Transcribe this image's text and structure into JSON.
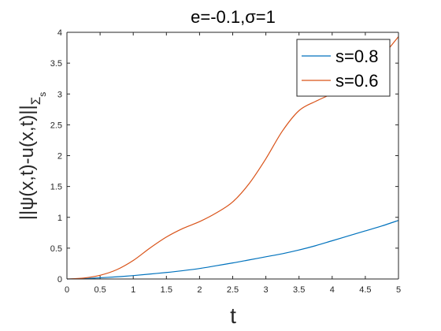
{
  "chart_data": {
    "type": "line",
    "title": "e=-0.1,σ=1",
    "xlabel": "t",
    "ylabel": "||ψ(x,t)-u(x,t)||",
    "ylabel_subscript": "Σ",
    "ylabel_subsubscript": "s",
    "xlim": [
      0,
      5
    ],
    "ylim": [
      0,
      4
    ],
    "xticks": [
      "0",
      "0.5",
      "1",
      "1.5",
      "2",
      "2.5",
      "3",
      "3.5",
      "4",
      "4.5",
      "5"
    ],
    "yticks": [
      "0",
      "0.5",
      "1",
      "1.5",
      "2",
      "2.5",
      "3",
      "3.5",
      "4"
    ],
    "grid": false,
    "legend_position": "top-right",
    "series": [
      {
        "name": "s=0.8",
        "color": "#0072BD",
        "x": [
          0,
          0.25,
          0.5,
          0.75,
          1,
          1.25,
          1.5,
          1.75,
          2,
          2.25,
          2.5,
          2.75,
          3,
          3.25,
          3.5,
          3.75,
          4,
          4.25,
          4.5,
          4.75,
          5
        ],
        "y": [
          0,
          0.005,
          0.02,
          0.035,
          0.055,
          0.08,
          0.105,
          0.135,
          0.17,
          0.215,
          0.26,
          0.31,
          0.36,
          0.41,
          0.47,
          0.54,
          0.62,
          0.7,
          0.78,
          0.86,
          0.95
        ]
      },
      {
        "name": "s=0.6",
        "color": "#D95319",
        "x": [
          0,
          0.25,
          0.5,
          0.75,
          1,
          1.25,
          1.5,
          1.75,
          2,
          2.25,
          2.5,
          2.75,
          3,
          3.25,
          3.5,
          3.75,
          4,
          4.25,
          4.5,
          4.75,
          5
        ],
        "y": [
          0,
          0.015,
          0.06,
          0.15,
          0.3,
          0.5,
          0.68,
          0.82,
          0.93,
          1.07,
          1.25,
          1.55,
          1.95,
          2.4,
          2.73,
          2.88,
          3.0,
          3.1,
          3.3,
          3.6,
          3.93
        ]
      }
    ]
  }
}
